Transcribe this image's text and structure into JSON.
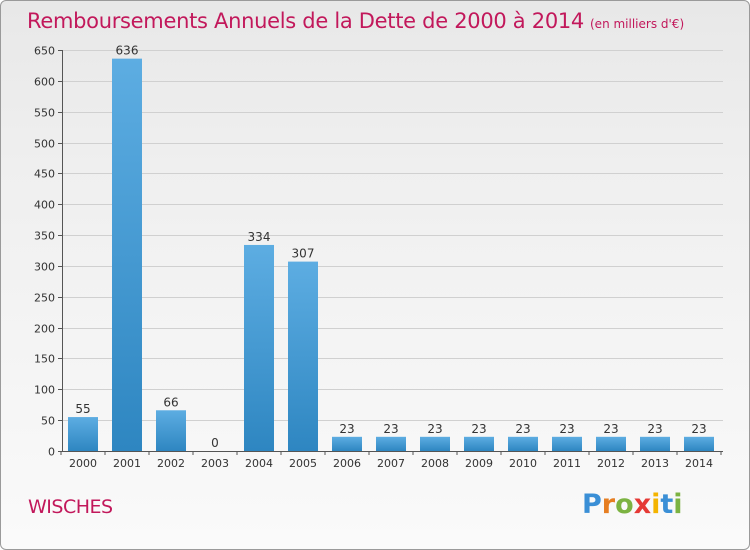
{
  "header": {
    "title": "Remboursements Annuels de la Dette de 2000 à 2014",
    "unit": "(en milliers d'€)"
  },
  "footer": {
    "commune": "WISCHES",
    "logo_text": "Proxiti"
  },
  "colors": {
    "title": "#c2185b",
    "bar_light": "#5dade2",
    "bar_dark": "#2e86c1",
    "grid": "#d0d0d0"
  },
  "chart_data": {
    "type": "bar",
    "categories": [
      "2000",
      "2001",
      "2002",
      "2003",
      "2004",
      "2005",
      "2006",
      "2007",
      "2008",
      "2009",
      "2010",
      "2011",
      "2012",
      "2013",
      "2014"
    ],
    "values": [
      55,
      636,
      66,
      0,
      334,
      307,
      23,
      23,
      23,
      23,
      23,
      23,
      23,
      23,
      23
    ],
    "title": "Remboursements Annuels de la Dette de 2000 à 2014",
    "ylim": [
      0,
      650
    ],
    "yticks": [
      0,
      50,
      100,
      150,
      200,
      250,
      300,
      350,
      400,
      450,
      500,
      550,
      600,
      650
    ],
    "grid": true,
    "data_labels": true
  }
}
